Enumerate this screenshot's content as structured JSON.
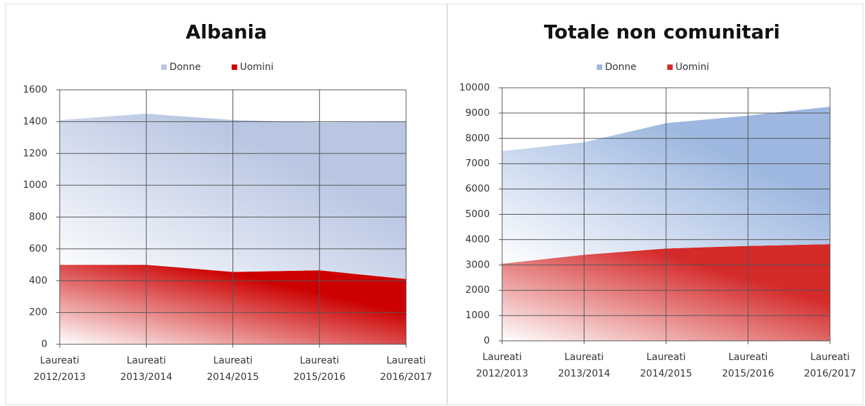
{
  "chart_data": [
    {
      "type": "area",
      "title": "Albania",
      "stacked": true,
      "categories": [
        "Laureati 2012/2013",
        "Laureati 2013/2014",
        "Laureati 2014/2015",
        "Laureati 2015/2016",
        "Laureati 2016/2017"
      ],
      "series": [
        {
          "name": "Donne",
          "color": "#b8c6e2",
          "values": [
            910,
            950,
            955,
            930,
            990
          ]
        },
        {
          "name": "Uomini",
          "color": "#cc0000",
          "values": [
            500,
            500,
            455,
            465,
            410
          ]
        }
      ],
      "ylim": [
        0,
        1600
      ],
      "yticks": [
        0,
        200,
        400,
        600,
        800,
        1000,
        1200,
        1400,
        1600
      ],
      "grid": true,
      "legend": "top"
    },
    {
      "type": "area",
      "title": "Totale non comunitari",
      "stacked": true,
      "categories": [
        "Laureati 2012/2013",
        "Laureati 2013/2014",
        "Laureati 2014/2015",
        "Laureati 2015/2016",
        "Laureati 2016/2017"
      ],
      "series": [
        {
          "name": "Donne",
          "color": "#9db7e0",
          "values": [
            4450,
            4450,
            4950,
            5150,
            5430
          ]
        },
        {
          "name": "Uomini",
          "color": "#d42a2a",
          "values": [
            3050,
            3400,
            3650,
            3750,
            3820
          ]
        }
      ],
      "ylim": [
        0,
        10000
      ],
      "yticks": [
        0,
        1000,
        2000,
        3000,
        4000,
        5000,
        6000,
        7000,
        8000,
        9000,
        10000
      ],
      "grid": true,
      "legend": "top"
    }
  ]
}
